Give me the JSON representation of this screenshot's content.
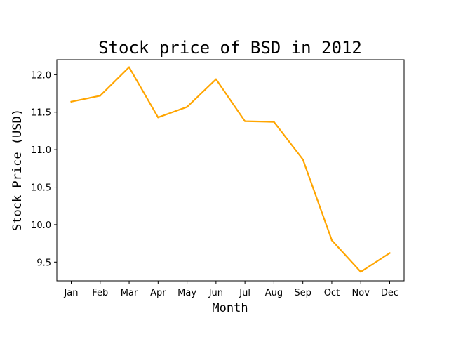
{
  "chart_data": {
    "type": "line",
    "title": "Stock price of BSD in 2012",
    "xlabel": "Month",
    "ylabel": "Stock Price (USD)",
    "categories": [
      "Jan",
      "Feb",
      "Mar",
      "Apr",
      "May",
      "Jun",
      "Jul",
      "Aug",
      "Sep",
      "Oct",
      "Nov",
      "Dec"
    ],
    "series": [
      {
        "values": [
          11.64,
          11.72,
          12.1,
          11.43,
          11.57,
          11.94,
          11.38,
          11.37,
          10.87,
          9.79,
          9.37,
          9.62
        ],
        "color": "#FFA500"
      }
    ],
    "ylim": [
      9.25,
      12.2
    ],
    "yticks": [
      9.5,
      10.0,
      10.5,
      11.0,
      11.5,
      12.0
    ],
    "ytick_labels": [
      "9.5",
      "10.0",
      "10.5",
      "11.0",
      "11.5",
      "12.0"
    ],
    "grid": false,
    "legend": "none"
  }
}
